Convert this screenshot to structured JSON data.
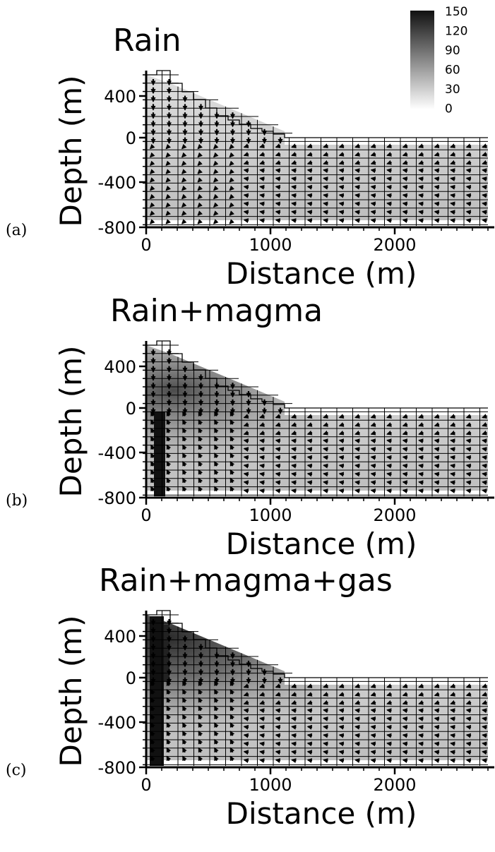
{
  "colorbar": {
    "ticks": [
      "150",
      "120",
      "90",
      "60",
      "30",
      "0"
    ],
    "min": 0,
    "max": 150,
    "gradient_top": "#111111",
    "gradient_bottom": "#ffffff"
  },
  "axes": {
    "xlabel": "Distance (m)",
    "ylabel": "Depth (m)",
    "xticks": [
      "0",
      "1000",
      "2000"
    ],
    "yticks": [
      "400",
      "0",
      "-400",
      "-800"
    ]
  },
  "panels": [
    {
      "letter": "(a)",
      "title": "Rain",
      "source": "none"
    },
    {
      "letter": "(b)",
      "title": "Rain+magma",
      "source": "magma"
    },
    {
      "letter": "(c)",
      "title": "Rain+magma+gas",
      "source": "gas"
    }
  ],
  "colors": {
    "grid_line": "#000000",
    "arrow": "#000000",
    "shade_light": "#d6d6d6",
    "shade_dark": "#1a1a1a"
  }
}
